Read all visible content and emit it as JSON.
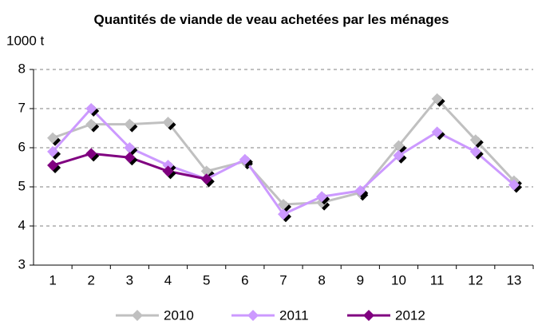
{
  "chart_data": {
    "type": "line",
    "title": "Quantités de viande de veau achetées par les ménages",
    "y_label": "1000 t",
    "categories": [
      "1",
      "2",
      "3",
      "4",
      "5",
      "6",
      "7",
      "8",
      "9",
      "10",
      "11",
      "12",
      "13"
    ],
    "series": [
      {
        "name": "2010",
        "color": "#c0c0c0",
        "values": [
          6.25,
          6.6,
          6.6,
          6.65,
          5.4,
          5.65,
          4.55,
          4.6,
          4.85,
          6.05,
          7.25,
          6.2,
          5.15
        ]
      },
      {
        "name": "2011",
        "color": "#cc99ff",
        "values": [
          5.9,
          7.0,
          6.0,
          5.55,
          5.2,
          5.7,
          4.3,
          4.75,
          4.9,
          5.8,
          6.4,
          5.9,
          5.05
        ]
      },
      {
        "name": "2012",
        "color": "#800080",
        "values": [
          5.55,
          5.85,
          5.75,
          5.4,
          5.2,
          null,
          null,
          null,
          null,
          null,
          null,
          null,
          null
        ]
      }
    ],
    "ylim": [
      3,
      8
    ],
    "yticks": [
      3,
      4,
      5,
      6,
      7,
      8
    ],
    "grid": true,
    "legend": "bottom"
  }
}
